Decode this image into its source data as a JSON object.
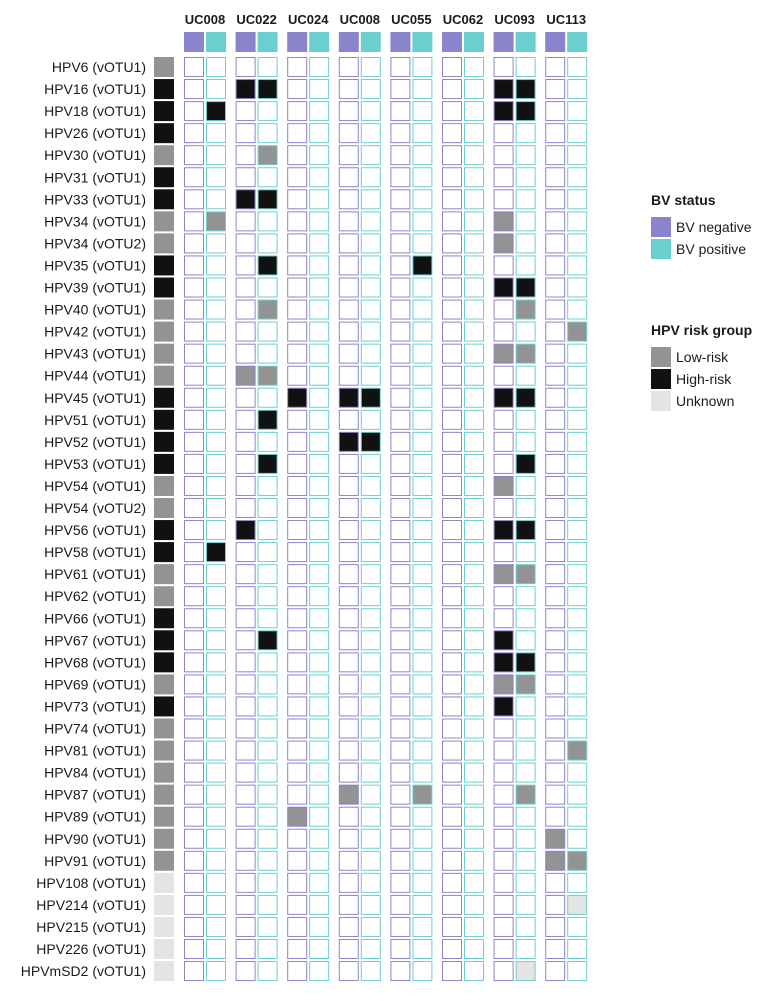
{
  "chart_data": {
    "type": "heatmap",
    "samples": [
      "UC008",
      "UC022",
      "UC024",
      "UC008",
      "UC055",
      "UC062",
      "UC093",
      "UC113"
    ],
    "rows": [
      {
        "label": "HPV6 (vOTU1)",
        "risk": "Low-risk"
      },
      {
        "label": "HPV16 (vOTU1)",
        "risk": "High-risk"
      },
      {
        "label": "HPV18 (vOTU1)",
        "risk": "High-risk"
      },
      {
        "label": "HPV26 (vOTU1)",
        "risk": "High-risk"
      },
      {
        "label": "HPV30 (vOTU1)",
        "risk": "Low-risk"
      },
      {
        "label": "HPV31 (vOTU1)",
        "risk": "High-risk"
      },
      {
        "label": "HPV33 (vOTU1)",
        "risk": "High-risk"
      },
      {
        "label": "HPV34 (vOTU1)",
        "risk": "Low-risk"
      },
      {
        "label": "HPV34 (vOTU2)",
        "risk": "Low-risk"
      },
      {
        "label": "HPV35 (vOTU1)",
        "risk": "High-risk"
      },
      {
        "label": "HPV39 (vOTU1)",
        "risk": "High-risk"
      },
      {
        "label": "HPV40 (vOTU1)",
        "risk": "Low-risk"
      },
      {
        "label": "HPV42 (vOTU1)",
        "risk": "Low-risk"
      },
      {
        "label": "HPV43 (vOTU1)",
        "risk": "Low-risk"
      },
      {
        "label": "HPV44 (vOTU1)",
        "risk": "Low-risk"
      },
      {
        "label": "HPV45 (vOTU1)",
        "risk": "High-risk"
      },
      {
        "label": "HPV51 (vOTU1)",
        "risk": "High-risk"
      },
      {
        "label": "HPV52 (vOTU1)",
        "risk": "High-risk"
      },
      {
        "label": "HPV53 (vOTU1)",
        "risk": "High-risk"
      },
      {
        "label": "HPV54 (vOTU1)",
        "risk": "Low-risk"
      },
      {
        "label": "HPV54 (vOTU2)",
        "risk": "Low-risk"
      },
      {
        "label": "HPV56 (vOTU1)",
        "risk": "High-risk"
      },
      {
        "label": "HPV58 (vOTU1)",
        "risk": "High-risk"
      },
      {
        "label": "HPV61 (vOTU1)",
        "risk": "Low-risk"
      },
      {
        "label": "HPV62 (vOTU1)",
        "risk": "Low-risk"
      },
      {
        "label": "HPV66 (vOTU1)",
        "risk": "High-risk"
      },
      {
        "label": "HPV67 (vOTU1)",
        "risk": "High-risk"
      },
      {
        "label": "HPV68 (vOTU1)",
        "risk": "High-risk"
      },
      {
        "label": "HPV69 (vOTU1)",
        "risk": "Low-risk"
      },
      {
        "label": "HPV73 (vOTU1)",
        "risk": "High-risk"
      },
      {
        "label": "HPV74 (vOTU1)",
        "risk": "Low-risk"
      },
      {
        "label": "HPV81 (vOTU1)",
        "risk": "Low-risk"
      },
      {
        "label": "HPV84 (vOTU1)",
        "risk": "Low-risk"
      },
      {
        "label": "HPV87 (vOTU1)",
        "risk": "Low-risk"
      },
      {
        "label": "HPV89 (vOTU1)",
        "risk": "Low-risk"
      },
      {
        "label": "HPV90 (vOTU1)",
        "risk": "Low-risk"
      },
      {
        "label": "HPV91 (vOTU1)",
        "risk": "Low-risk"
      },
      {
        "label": "HPV108 (vOTU1)",
        "risk": "Unknown"
      },
      {
        "label": "HPV214 (vOTU1)",
        "risk": "Unknown"
      },
      {
        "label": "HPV215 (vOTU1)",
        "risk": "Unknown"
      },
      {
        "label": "HPV226 (vOTU1)",
        "risk": "Unknown"
      },
      {
        "label": "HPVmSD2 (vOTU1)",
        "risk": "Unknown"
      }
    ],
    "filled_cells": [
      {
        "row": 1,
        "sample": 1,
        "bv": 0
      },
      {
        "row": 1,
        "sample": 1,
        "bv": 1
      },
      {
        "row": 1,
        "sample": 6,
        "bv": 0
      },
      {
        "row": 1,
        "sample": 6,
        "bv": 1
      },
      {
        "row": 2,
        "sample": 0,
        "bv": 1
      },
      {
        "row": 2,
        "sample": 6,
        "bv": 0
      },
      {
        "row": 2,
        "sample": 6,
        "bv": 1
      },
      {
        "row": 4,
        "sample": 1,
        "bv": 1
      },
      {
        "row": 6,
        "sample": 1,
        "bv": 0
      },
      {
        "row": 6,
        "sample": 1,
        "bv": 1
      },
      {
        "row": 7,
        "sample": 0,
        "bv": 1
      },
      {
        "row": 7,
        "sample": 6,
        "bv": 0
      },
      {
        "row": 8,
        "sample": 6,
        "bv": 0
      },
      {
        "row": 9,
        "sample": 1,
        "bv": 1
      },
      {
        "row": 9,
        "sample": 4,
        "bv": 1
      },
      {
        "row": 10,
        "sample": 6,
        "bv": 0
      },
      {
        "row": 10,
        "sample": 6,
        "bv": 1
      },
      {
        "row": 11,
        "sample": 1,
        "bv": 1
      },
      {
        "row": 11,
        "sample": 6,
        "bv": 1
      },
      {
        "row": 12,
        "sample": 7,
        "bv": 1
      },
      {
        "row": 13,
        "sample": 6,
        "bv": 0
      },
      {
        "row": 13,
        "sample": 6,
        "bv": 1
      },
      {
        "row": 14,
        "sample": 1,
        "bv": 0
      },
      {
        "row": 14,
        "sample": 1,
        "bv": 1
      },
      {
        "row": 15,
        "sample": 2,
        "bv": 0
      },
      {
        "row": 15,
        "sample": 3,
        "bv": 0
      },
      {
        "row": 15,
        "sample": 3,
        "bv": 1
      },
      {
        "row": 15,
        "sample": 6,
        "bv": 0
      },
      {
        "row": 15,
        "sample": 6,
        "bv": 1
      },
      {
        "row": 16,
        "sample": 1,
        "bv": 1
      },
      {
        "row": 17,
        "sample": 3,
        "bv": 0
      },
      {
        "row": 17,
        "sample": 3,
        "bv": 1
      },
      {
        "row": 18,
        "sample": 1,
        "bv": 1
      },
      {
        "row": 18,
        "sample": 6,
        "bv": 1
      },
      {
        "row": 19,
        "sample": 6,
        "bv": 0
      },
      {
        "row": 21,
        "sample": 1,
        "bv": 0
      },
      {
        "row": 21,
        "sample": 6,
        "bv": 0
      },
      {
        "row": 21,
        "sample": 6,
        "bv": 1
      },
      {
        "row": 22,
        "sample": 0,
        "bv": 1
      },
      {
        "row": 23,
        "sample": 6,
        "bv": 0
      },
      {
        "row": 23,
        "sample": 6,
        "bv": 1
      },
      {
        "row": 26,
        "sample": 1,
        "bv": 1
      },
      {
        "row": 26,
        "sample": 6,
        "bv": 0
      },
      {
        "row": 27,
        "sample": 6,
        "bv": 0
      },
      {
        "row": 27,
        "sample": 6,
        "bv": 1
      },
      {
        "row": 28,
        "sample": 6,
        "bv": 0
      },
      {
        "row": 28,
        "sample": 6,
        "bv": 1
      },
      {
        "row": 29,
        "sample": 6,
        "bv": 0
      },
      {
        "row": 31,
        "sample": 7,
        "bv": 1
      },
      {
        "row": 33,
        "sample": 3,
        "bv": 0
      },
      {
        "row": 33,
        "sample": 4,
        "bv": 1
      },
      {
        "row": 33,
        "sample": 6,
        "bv": 1
      },
      {
        "row": 34,
        "sample": 2,
        "bv": 0
      },
      {
        "row": 35,
        "sample": 7,
        "bv": 0
      },
      {
        "row": 36,
        "sample": 7,
        "bv": 0
      },
      {
        "row": 36,
        "sample": 7,
        "bv": 1
      },
      {
        "row": 38,
        "sample": 7,
        "bv": 1
      },
      {
        "row": 41,
        "sample": 6,
        "bv": 1
      }
    ],
    "legend": {
      "bv_status": {
        "title": "BV status",
        "items": [
          {
            "label": "BV negative",
            "color": "#8a84cc"
          },
          {
            "label": "BV positive",
            "color": "#6ccfcf"
          }
        ]
      },
      "hpv_risk_group": {
        "title": "HPV risk group",
        "items": [
          {
            "label": "Low-risk",
            "color": "#939393"
          },
          {
            "label": "High-risk",
            "color": "#111111"
          },
          {
            "label": "Unknown",
            "color": "#e4e4e4"
          }
        ]
      },
      "placement": "right"
    }
  }
}
